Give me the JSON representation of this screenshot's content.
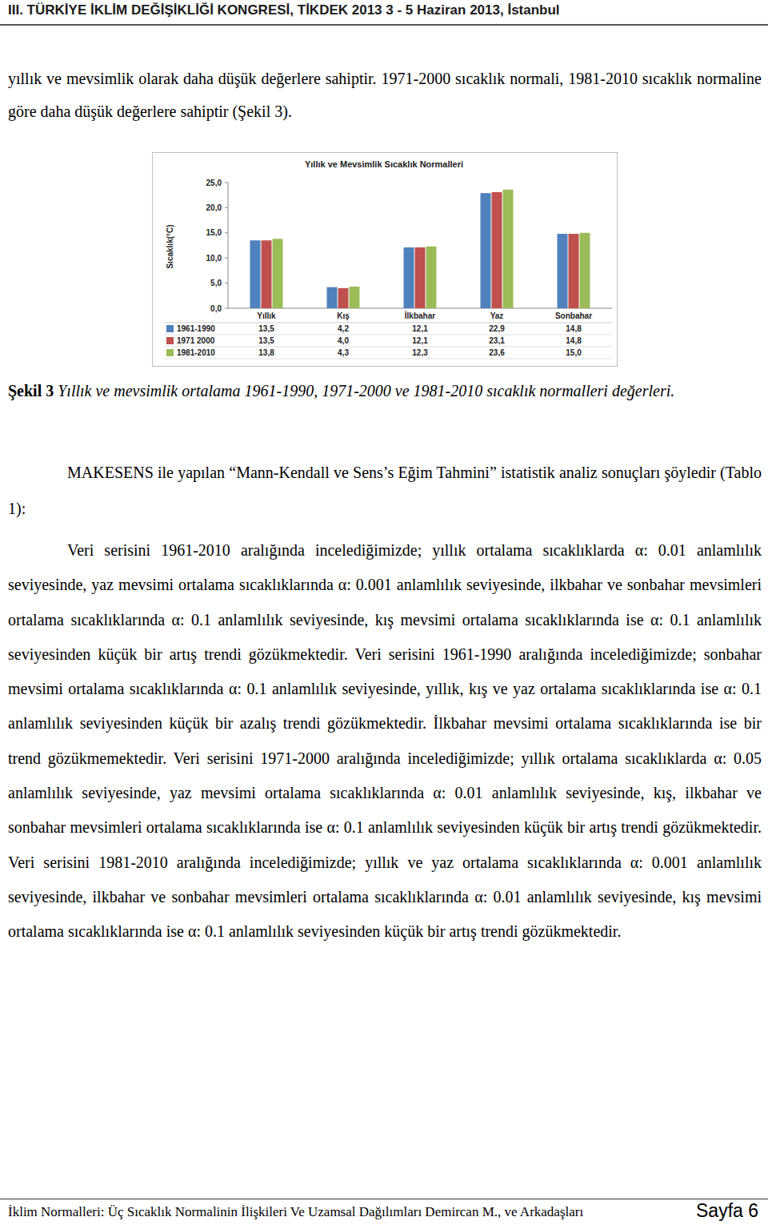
{
  "header": {
    "title": "III. TÜRKİYE İKLİM DEĞİŞİKLİĞİ KONGRESİ, TİKDEK 2013 3 - 5 Haziran 2013, İstanbul"
  },
  "intro": "yıllık ve mevsimlik olarak daha düşük değerlere sahiptir. 1971-2000 sıcaklık normali, 1981-2010 sıcaklık normaline göre daha düşük değerlere sahiptir (Şekil 3).",
  "chart_data": {
    "type": "bar",
    "title": "Yıllık ve Mevsimlik Sıcaklık Normalleri",
    "y_label": "Sıcaklık(°C)",
    "categories": [
      "Yıllık",
      "Kış",
      "İlkbahar",
      "Yaz",
      "Sonbahar"
    ],
    "series": [
      {
        "name": "1961-1990",
        "color": "#4f81bd",
        "values": [
          13.5,
          4.2,
          12.1,
          22.9,
          14.8
        ],
        "value_labels": [
          "13,5",
          "4,2",
          "12,1",
          "22,9",
          "14,8"
        ]
      },
      {
        "name": "1971 2000",
        "color": "#c0504d",
        "values": [
          13.5,
          4.0,
          12.1,
          23.1,
          14.8
        ],
        "value_labels": [
          "13,5",
          "4,0",
          "12,1",
          "23,1",
          "14,8"
        ]
      },
      {
        "name": "1981-2010",
        "color": "#9bbb59",
        "values": [
          13.8,
          4.3,
          12.3,
          23.6,
          15.0
        ],
        "value_labels": [
          "13,8",
          "4,3",
          "12,3",
          "23,6",
          "15,0"
        ]
      }
    ],
    "ylim": [
      0,
      25
    ],
    "yticks": [
      {
        "value": 0,
        "label": "0,0"
      },
      {
        "value": 5,
        "label": "5,0"
      },
      {
        "value": 10,
        "label": "10,0"
      },
      {
        "value": 15,
        "label": "15,0"
      },
      {
        "value": 20,
        "label": "20,0"
      },
      {
        "value": 25,
        "label": "25,0"
      }
    ],
    "grid": false
  },
  "caption": {
    "label": "Şekil 3",
    "text": "Yıllık ve mevsimlik ortalama 1961-1990, 1971-2000 ve 1981-2010 sıcaklık normalleri değerleri."
  },
  "paragraphs": [
    "MAKESENS ile yapılan “Mann-Kendall ve Sens’s Eğim Tahmini” istatistik analiz sonuçları şöyledir (Tablo 1):",
    "Veri serisini 1961-2010 aralığında incelediğimizde; yıllık ortalama sıcaklıklarda α: 0.01 anlamlılık seviyesinde, yaz mevsimi ortalama sıcaklıklarında α: 0.001 anlamlılık seviyesinde, ilkbahar ve sonbahar mevsimleri ortalama sıcaklıklarında α: 0.1 anlamlılık seviyesinde, kış mevsimi ortalama sıcaklıklarında ise α: 0.1 anlamlılık seviyesinden küçük bir artış trendi gözükmektedir. Veri serisini 1961-1990 aralığında incelediğimizde; sonbahar mevsimi ortalama sıcaklıklarında α: 0.1 anlamlılık seviyesinde, yıllık, kış ve yaz ortalama sıcaklıklarında ise α: 0.1 anlamlılık seviyesinden küçük bir azalış trendi gözükmektedir. İlkbahar mevsimi ortalama sıcaklıklarında ise bir trend gözükmemektedir. Veri serisini 1971-2000 aralığında incelediğimizde; yıllık ortalama sıcaklıklarda α: 0.05 anlamlılık seviyesinde, yaz mevsimi ortalama sıcaklıklarında α: 0.01 anlamlılık seviyesinde, kış, ilkbahar ve sonbahar mevsimleri ortalama sıcaklıklarında ise α: 0.1 anlamlılık seviyesinden küçük bir artış trendi gözükmektedir. Veri serisini 1981-2010 aralığında incelediğimizde; yıllık ve yaz ortalama sıcaklıklarında α: 0.001 anlamlılık seviyesinde, ilkbahar ve sonbahar mevsimleri ortalama sıcaklıklarında α: 0.01 anlamlılık seviyesinde, kış mevsimi ortalama sıcaklıklarında ise α: 0.1 anlamlılık seviyesinden küçük bir artış trendi gözükmektedir."
  ],
  "footer": {
    "text": "İklim Normalleri: Üç Sıcaklık Normalinin İlişkileri Ve Uzamsal Dağılımları Demircan M., ve Arkadaşları",
    "page": "Sayfa 6"
  }
}
